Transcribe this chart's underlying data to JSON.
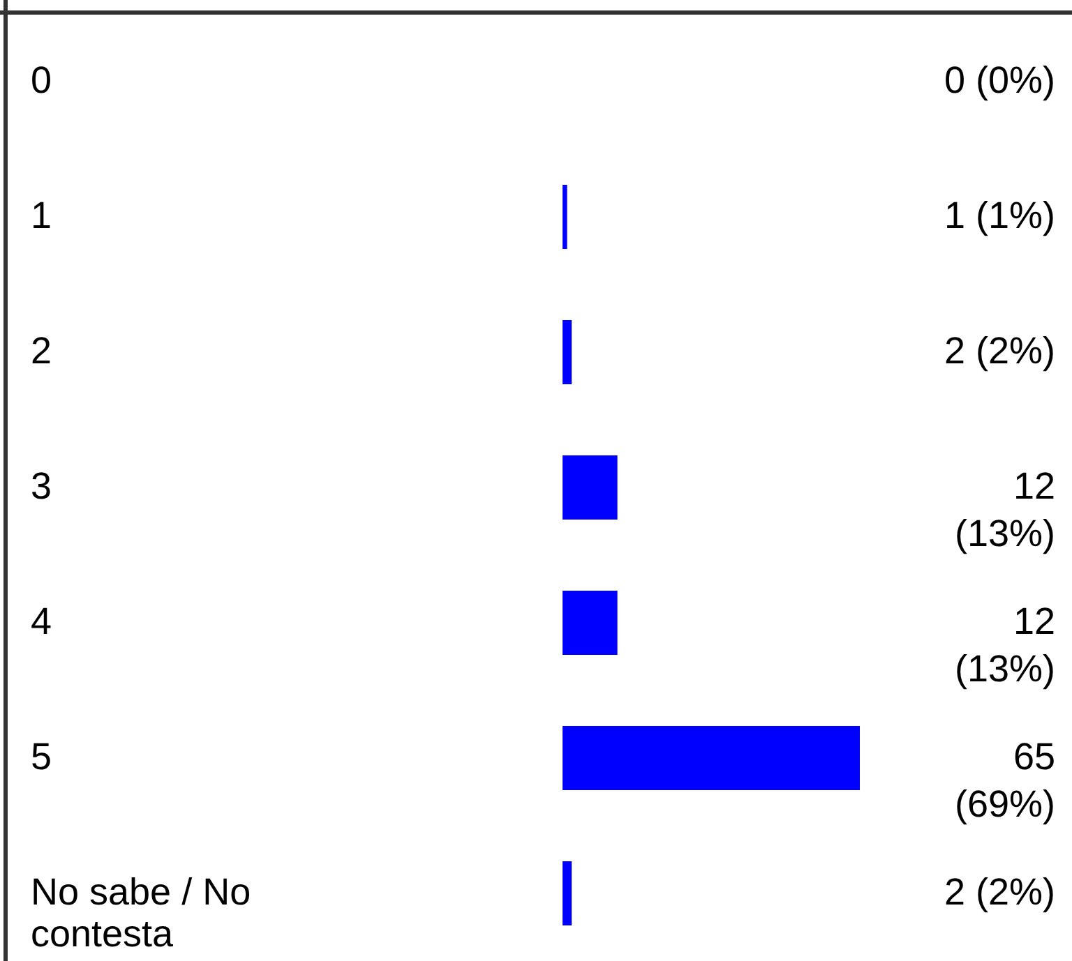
{
  "chart_data": {
    "type": "bar",
    "orientation": "horizontal",
    "categories": [
      "0",
      "1",
      "2",
      "3",
      "4",
      "5",
      "No sabe / No contesta"
    ],
    "values": [
      0,
      1,
      2,
      12,
      12,
      65,
      2
    ],
    "color": "#0000ff",
    "value_labels": [
      "0 (0%)",
      "1 (1%)",
      "2 (2%)",
      "12 (13%)",
      "12 (13%)",
      "65 (69%)",
      "2 (2%)"
    ]
  }
}
